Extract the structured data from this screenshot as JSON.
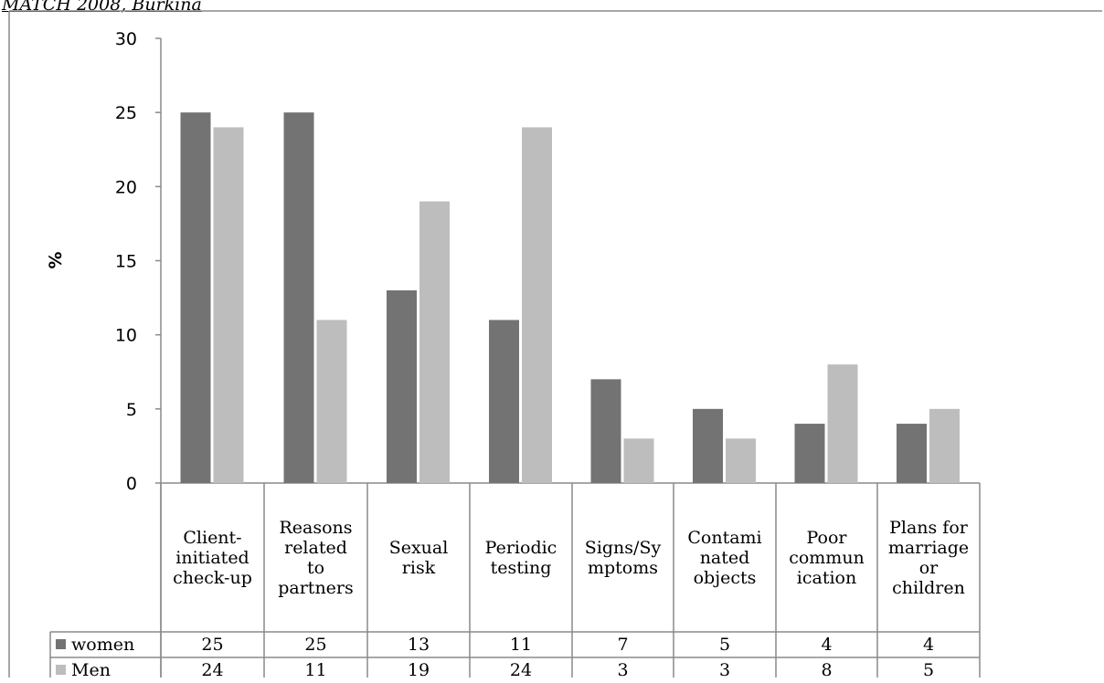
{
  "caption": "MATCH 2008, Burkina",
  "chart_data": {
    "type": "bar",
    "ylabel": "%",
    "ylim": [
      0,
      30
    ],
    "yticks": [
      0,
      5,
      10,
      15,
      20,
      25,
      30
    ],
    "grid": false,
    "categories": [
      "Client-initiated check-up",
      "Reasons related to partners",
      "Sexual risk",
      "Periodic testing",
      "Signs/Symptoms",
      "Contaminated objects",
      "Poor communication",
      "Plans for marriage or children"
    ],
    "category_lines": [
      [
        "Client-",
        "initiated",
        "check-up"
      ],
      [
        "Reasons",
        "related",
        "to",
        "partners"
      ],
      [
        "Sexual",
        "risk"
      ],
      [
        "Periodic",
        "testing"
      ],
      [
        "Signs/Sy",
        "mptoms"
      ],
      [
        "Contami",
        "nated",
        "objects"
      ],
      [
        "Poor",
        "commun",
        "ication"
      ],
      [
        "Plans for",
        "marriage",
        "or",
        "children"
      ]
    ],
    "series": [
      {
        "name": "women",
        "color": "#737373",
        "values": [
          25,
          25,
          13,
          11,
          7,
          5,
          4,
          4
        ]
      },
      {
        "name": "Men",
        "color": "#bdbdbd",
        "values": [
          24,
          11,
          19,
          24,
          3,
          3,
          8,
          5
        ]
      }
    ],
    "legend": "data-table"
  }
}
